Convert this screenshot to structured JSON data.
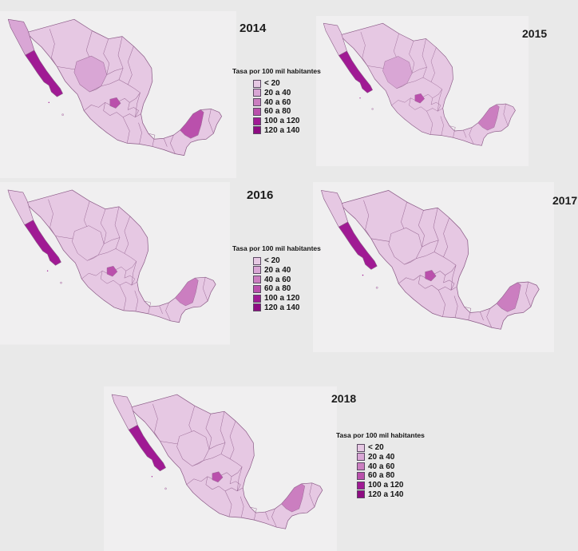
{
  "figure": {
    "description_title": "Tasa por 100 mil habitantes",
    "years_shown": [
      "2014",
      "2015",
      "2016",
      "2017",
      "2018"
    ]
  },
  "colors": {
    "background": "#e9e9e9",
    "map_background": "#f0eff0",
    "state_border": "#9a6b96",
    "outline": "#8a5a86",
    "text": "#1c1c1c"
  },
  "legend": {
    "title": "Tasa por 100 mil habitantes",
    "items": [
      {
        "label": "< 20",
        "color": "#e6c8e3"
      },
      {
        "label": "20 a 40",
        "color": "#d9a6d5"
      },
      {
        "label": "40 a 60",
        "color": "#cb7ec0"
      },
      {
        "label": "60 a 80",
        "color": "#ba50ac"
      },
      {
        "label": "100 a 120",
        "color": "#a01a94"
      },
      {
        "label": "120 a 140",
        "color": "#8e0b82"
      }
    ]
  },
  "maps": [
    {
      "year": "2014",
      "show_legend": true,
      "states": {
        "base": "< 20",
        "baja_california": "20 a 40",
        "baja_california_sur": "100 a 120",
        "durango": "20 a 40",
        "aguascalientes": "60 a 80",
        "campeche": "60 a 80"
      }
    },
    {
      "year": "2015",
      "show_legend": false,
      "states": {
        "base": "< 20",
        "baja_california": "< 20",
        "baja_california_sur": "100 a 120",
        "durango": "20 a 40",
        "aguascalientes": "60 a 80",
        "campeche": "40 a 60"
      }
    },
    {
      "year": "2016",
      "show_legend": true,
      "states": {
        "base": "< 20",
        "baja_california": "< 20",
        "baja_california_sur": "100 a 120",
        "durango": "< 20",
        "aguascalientes": "60 a 80",
        "campeche": "40 a 60"
      }
    },
    {
      "year": "2017",
      "show_legend": false,
      "states": {
        "base": "< 20",
        "baja_california": "< 20",
        "baja_california_sur": "100 a 120",
        "durango": "< 20",
        "aguascalientes": "60 a 80",
        "campeche": "40 a 60"
      }
    },
    {
      "year": "2018",
      "show_legend": true,
      "states": {
        "base": "< 20",
        "baja_california": "< 20",
        "baja_california_sur": "100 a 120",
        "durango": "< 20",
        "aguascalientes": "60 a 80",
        "campeche": "40 a 60"
      }
    }
  ]
}
